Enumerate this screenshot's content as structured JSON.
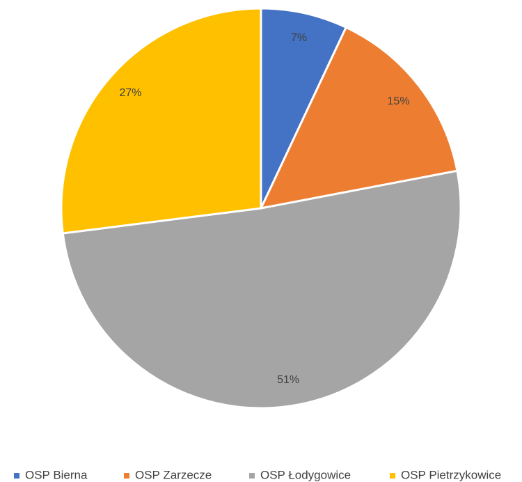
{
  "chart_data": {
    "type": "pie",
    "categories": [
      "OSP Bierna",
      "OSP Zarzecze",
      "OSP Łodygowice",
      "OSP Pietrzykowice"
    ],
    "values": [
      7,
      15,
      51,
      27
    ],
    "value_labels": [
      "7%",
      "15%",
      "51%",
      "27%"
    ],
    "colors": [
      "#4472c4",
      "#ed7d31",
      "#a5a5a5",
      "#ffc000"
    ],
    "legend": "bottom"
  }
}
